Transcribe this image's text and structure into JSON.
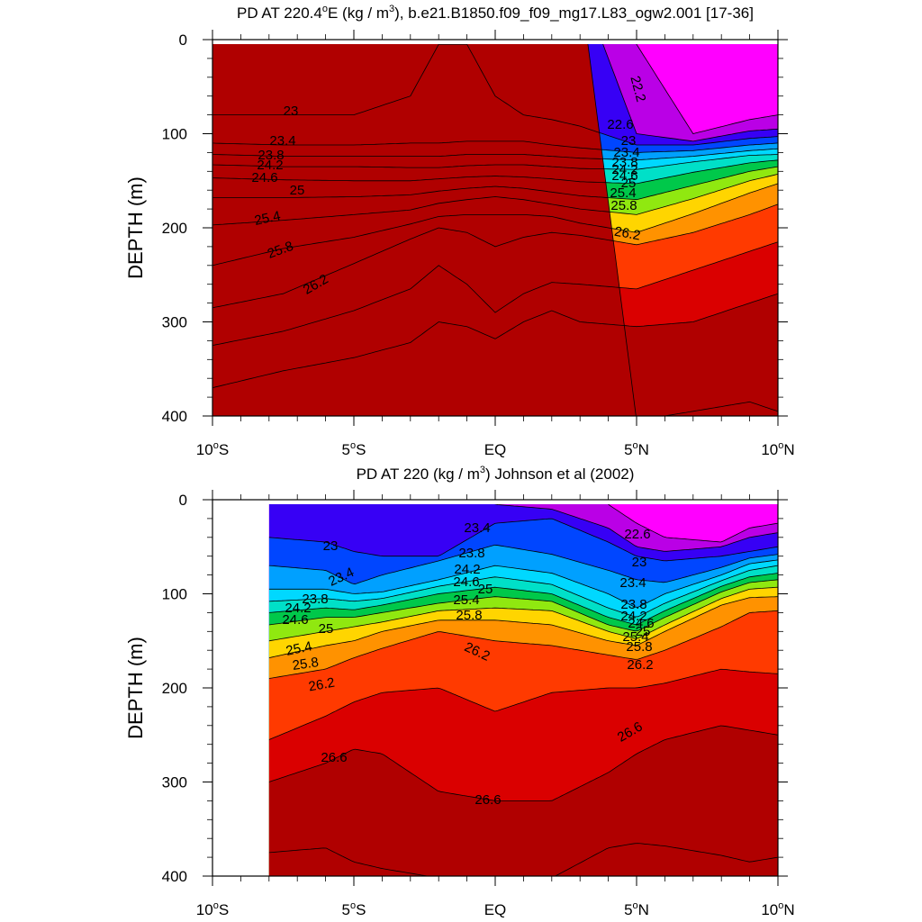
{
  "chart_data": [
    {
      "type": "contour",
      "title": "PD AT 220.4°E (kg / m³), b.e21.B1850.f09_f09_mg17.L83_ogw2.001 [17-36]",
      "title_parts": {
        "a": "PD AT 220.4",
        "deg": "o",
        "b": "E (kg / m",
        "sup": "3",
        "c": "), b.e21.B1850.f09_f09_mg17.L83_ogw2.001 [17-36]"
      },
      "ylabel": "DEPTH (m)",
      "xlabel": "",
      "xlim": [
        -10,
        10
      ],
      "ylim": [
        400,
        0
      ],
      "y_reversed": true,
      "xticks": [
        {
          "v": -10,
          "label": "10",
          "deg": "o",
          "suf": "S"
        },
        {
          "v": -5,
          "label": "5",
          "deg": "o",
          "suf": "S"
        },
        {
          "v": 0,
          "label": "EQ",
          "deg": "",
          "suf": ""
        },
        {
          "v": 5,
          "label": "5",
          "deg": "o",
          "suf": "N"
        },
        {
          "v": 10,
          "label": "10",
          "deg": "o",
          "suf": "N"
        }
      ],
      "yticks": [
        {
          "v": 0,
          "label": "0"
        },
        {
          "v": 100,
          "label": "100"
        },
        {
          "v": 200,
          "label": "200"
        },
        {
          "v": 300,
          "label": "300"
        },
        {
          "v": 400,
          "label": "400"
        }
      ],
      "data_x_start": -10,
      "contour_interval": 0.2,
      "x_nodes": [
        -10,
        -7.5,
        -5,
        -3,
        -2,
        -1,
        0,
        1,
        2,
        3,
        5,
        7,
        9,
        10
      ],
      "isolines": [
        {
          "level": 22.2,
          "depths": [
            null,
            null,
            null,
            null,
            null,
            null,
            null,
            null,
            null,
            null,
            5,
            100,
            85,
            80
          ]
        },
        {
          "level": 22.6,
          "depths": [
            null,
            null,
            null,
            null,
            null,
            null,
            null,
            null,
            null,
            null,
            100,
            108,
            97,
            95
          ]
        },
        {
          "level": 23.0,
          "depths": [
            80,
            80,
            80,
            60,
            5,
            5,
            60,
            80,
            85,
            92,
            112,
            112,
            105,
            103
          ]
        },
        {
          "level": 23.4,
          "depths": [
            110,
            112,
            112,
            110,
            110,
            108,
            108,
            108,
            112,
            115,
            120,
            118,
            112,
            110
          ]
        },
        {
          "level": 23.8,
          "depths": [
            122,
            124,
            124,
            124,
            124,
            122,
            122,
            122,
            124,
            126,
            128,
            124,
            118,
            116
          ]
        },
        {
          "level": 24.2,
          "depths": [
            133,
            135,
            135,
            136,
            136,
            134,
            133,
            133,
            135,
            137,
            138,
            130,
            123,
            122
          ]
        },
        {
          "level": 24.6,
          "depths": [
            147,
            149,
            150,
            150,
            148,
            146,
            145,
            146,
            148,
            151,
            153,
            141,
            131,
            128
          ]
        },
        {
          "level": 25.0,
          "depths": [
            168,
            168,
            167,
            165,
            161,
            158,
            156,
            158,
            162,
            166,
            170,
            155,
            140,
            135
          ]
        },
        {
          "level": 25.4,
          "depths": [
            197,
            192,
            186,
            181,
            174,
            170,
            167,
            170,
            175,
            180,
            186,
            169,
            150,
            143
          ]
        },
        {
          "level": 25.8,
          "depths": [
            240,
            222,
            210,
            196,
            188,
            186,
            186,
            186,
            188,
            195,
            205,
            185,
            163,
            153
          ]
        },
        {
          "level": 26.2,
          "depths": [
            285,
            270,
            238,
            212,
            200,
            205,
            220,
            210,
            205,
            208,
            218,
            205,
            186,
            175
          ]
        },
        {
          "level": 26.6,
          "depths": [
            325,
            310,
            288,
            265,
            240,
            260,
            290,
            270,
            258,
            260,
            265,
            245,
            225,
            215
          ]
        },
        {
          "level": 27.0,
          "depths": [
            370,
            352,
            338,
            322,
            300,
            305,
            318,
            300,
            288,
            300,
            305,
            300,
            280,
            270
          ]
        },
        {
          "level": 27.4,
          "depths": [
            null,
            null,
            null,
            null,
            null,
            null,
            null,
            null,
            null,
            null,
            405,
            395,
            385,
            395
          ]
        }
      ],
      "labels": [
        "23",
        "23.4",
        "23.8",
        "24.2",
        "24.6",
        "25",
        "25.4",
        "25.8",
        "26.2",
        "22.2",
        "22.6",
        "23",
        "23.4",
        "23.8",
        "24.2",
        "24.6",
        "25",
        "25.4",
        "25.8",
        "26.2"
      ],
      "colors": [
        "#b0b0b0",
        "#ff00ff",
        "#ba00e6",
        "#7e00ea",
        "#3700f5",
        "#0000ff",
        "#0046ff",
        "#0078ff",
        "#00a0ff",
        "#00bfff",
        "#00d8ff",
        "#24ecff",
        "#00e0c8",
        "#00d080",
        "#00c84a",
        "#20d020",
        "#90e810",
        "#fff700",
        "#ffd500",
        "#ffb100",
        "#ff9200",
        "#ff6e00",
        "#ff3a00",
        "#f00000",
        "#da0000",
        "#c60000",
        "#b00000"
      ]
    },
    {
      "type": "contour",
      "title": "PD AT 220 (kg / m³) Johnson et al (2002)",
      "title_parts": {
        "a": "PD AT 220 (kg / m",
        "sup": "3",
        "c": ") Johnson et al (2002)"
      },
      "ylabel": "DEPTH (m)",
      "xlabel": "",
      "xlim": [
        -10,
        10
      ],
      "ylim": [
        400,
        0
      ],
      "y_reversed": true,
      "xticks": [
        {
          "v": -10,
          "label": "10",
          "deg": "o",
          "suf": "S"
        },
        {
          "v": -5,
          "label": "5",
          "deg": "o",
          "suf": "S"
        },
        {
          "v": 0,
          "label": "EQ",
          "deg": "",
          "suf": ""
        },
        {
          "v": 5,
          "label": "5",
          "deg": "o",
          "suf": "N"
        },
        {
          "v": 10,
          "label": "10",
          "deg": "o",
          "suf": "N"
        }
      ],
      "yticks": [
        {
          "v": 0,
          "label": "0"
        },
        {
          "v": 100,
          "label": "100"
        },
        {
          "v": 200,
          "label": "200"
        },
        {
          "v": 300,
          "label": "300"
        },
        {
          "v": 400,
          "label": "400"
        }
      ],
      "data_x_start": -8,
      "contour_interval": 0.2,
      "x_nodes": [
        -8,
        -6,
        -5,
        -4,
        -2,
        0,
        2,
        4,
        5,
        6,
        8,
        9,
        10
      ],
      "isolines": [
        {
          "level": 22.2,
          "depths": [
            null,
            null,
            null,
            null,
            null,
            null,
            null,
            5,
            25,
            40,
            45,
            30,
            25
          ]
        },
        {
          "level": 22.6,
          "depths": [
            null,
            null,
            null,
            null,
            null,
            5,
            10,
            30,
            50,
            55,
            50,
            40,
            35
          ]
        },
        {
          "level": 23.0,
          "depths": [
            40,
            45,
            55,
            60,
            60,
            25,
            20,
            45,
            60,
            65,
            60,
            55,
            50
          ]
        },
        {
          "level": 23.4,
          "depths": [
            70,
            75,
            90,
            80,
            65,
            48,
            58,
            75,
            85,
            88,
            72,
            62,
            58
          ]
        },
        {
          "level": 23.8,
          "depths": [
            95,
            95,
            100,
            98,
            85,
            70,
            78,
            100,
            115,
            100,
            80,
            68,
            64
          ]
        },
        {
          "level": 24.2,
          "depths": [
            108,
            105,
            108,
            105,
            92,
            82,
            90,
            115,
            125,
            110,
            86,
            75,
            70
          ]
        },
        {
          "level": 24.6,
          "depths": [
            120,
            115,
            117,
            112,
            100,
            93,
            100,
            125,
            133,
            118,
            92,
            82,
            78
          ]
        },
        {
          "level": 25.0,
          "depths": [
            133,
            125,
            125,
            120,
            110,
            103,
            108,
            133,
            140,
            125,
            98,
            88,
            85
          ]
        },
        {
          "level": 25.4,
          "depths": [
            150,
            140,
            135,
            130,
            118,
            115,
            118,
            140,
            148,
            133,
            105,
            95,
            93
          ]
        },
        {
          "level": 25.8,
          "depths": [
            168,
            155,
            150,
            140,
            128,
            128,
            133,
            150,
            155,
            140,
            112,
            104,
            103
          ]
        },
        {
          "level": 26.2,
          "depths": [
            190,
            180,
            168,
            158,
            140,
            150,
            155,
            165,
            170,
            160,
            135,
            120,
            118
          ]
        },
        {
          "level": 26.6,
          "depths": [
            255,
            230,
            215,
            205,
            200,
            225,
            205,
            200,
            200,
            195,
            180,
            183,
            185
          ]
        },
        {
          "level": 27.0,
          "depths": [
            300,
            280,
            265,
            270,
            310,
            320,
            320,
            290,
            270,
            255,
            240,
            245,
            250
          ]
        },
        {
          "level": 27.4,
          "depths": [
            375,
            370,
            385,
            392,
            402,
            402,
            402,
            370,
            365,
            368,
            378,
            385,
            380
          ]
        }
      ],
      "labels": [
        "23",
        "23.4",
        "23.8",
        "24.2",
        "24.6",
        "25",
        "25.4",
        "25.8",
        "26.2",
        "26.6",
        "23.4",
        "23.8",
        "24.2",
        "24.6",
        "25",
        "25.4",
        "25.8",
        "26.2",
        "26.6",
        "22.6",
        "23",
        "23.4",
        "23.8",
        "24.2",
        "24.6",
        "25",
        "25.4",
        "25.8",
        "26.2",
        "26.6"
      ],
      "colors": [
        "#b0b0b0",
        "#ff00ff",
        "#ba00e6",
        "#7e00ea",
        "#3700f5",
        "#0000ff",
        "#0046ff",
        "#0078ff",
        "#00a0ff",
        "#00bfff",
        "#00d8ff",
        "#24ecff",
        "#00e0c8",
        "#00d080",
        "#00c84a",
        "#20d020",
        "#90e810",
        "#fff700",
        "#ffd500",
        "#ffb100",
        "#ff9200",
        "#ff6e00",
        "#ff3a00",
        "#f00000",
        "#da0000",
        "#c60000",
        "#b00000"
      ]
    }
  ]
}
